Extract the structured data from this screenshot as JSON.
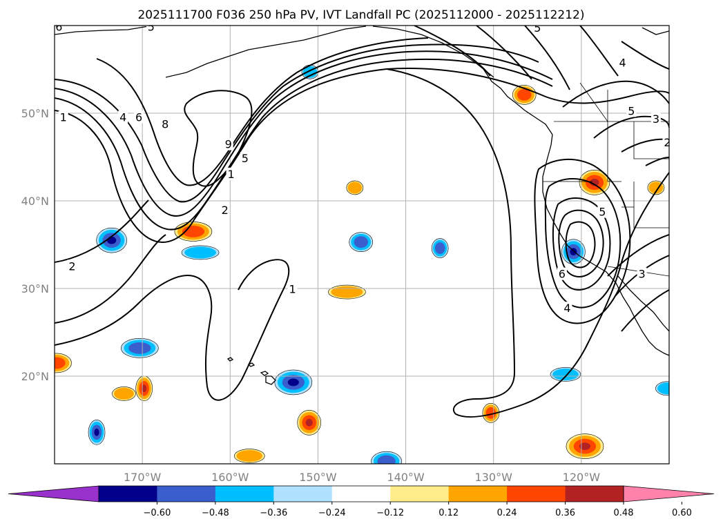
{
  "chart_data": {
    "type": "contour-map",
    "title": "2025111700 F036 250 hPa PV, IVT Landfall PC (2025112000 - 2025112212)",
    "map": {
      "lon_range": [
        -180,
        -110
      ],
      "lat_range": [
        10,
        60
      ],
      "gridlines": true,
      "x_ticks": [
        {
          "lon": -170,
          "label": "170°W"
        },
        {
          "lon": -160,
          "label": "160°W"
        },
        {
          "lon": -150,
          "label": "150°W"
        },
        {
          "lon": -140,
          "label": "140°W"
        },
        {
          "lon": -130,
          "label": "130°W"
        },
        {
          "lon": -120,
          "label": "120°W"
        }
      ],
      "y_ticks": [
        {
          "lat": 50,
          "label": "50°N"
        },
        {
          "lat": 40,
          "label": "40°N"
        },
        {
          "lat": 30,
          "label": "30°N"
        },
        {
          "lat": 20,
          "label": "20°N"
        }
      ]
    },
    "pv_contours": {
      "variable": "250 hPa PV",
      "color": "#000000",
      "labels": [
        {
          "text": "1",
          "lon": -179,
          "lat": 49.5
        },
        {
          "text": "4",
          "lon": -172.2,
          "lat": 49.5
        },
        {
          "text": "6",
          "lon": -170.4,
          "lat": 49.5
        },
        {
          "text": "8",
          "lon": -167.4,
          "lat": 48.7
        },
        {
          "text": "9",
          "lon": -160.2,
          "lat": 46.4
        },
        {
          "text": "5",
          "lon": -158.3,
          "lat": 44.8
        },
        {
          "text": "1",
          "lon": -159.9,
          "lat": 43
        },
        {
          "text": "2",
          "lon": -160.6,
          "lat": 38.9
        },
        {
          "text": "2",
          "lon": -178,
          "lat": 32.5
        },
        {
          "text": "1",
          "lon": -152.9,
          "lat": 29.9
        },
        {
          "text": "5",
          "lon": -125,
          "lat": 59.7
        },
        {
          "text": "4",
          "lon": -115.3,
          "lat": 55.7
        },
        {
          "text": "5",
          "lon": -114.3,
          "lat": 50.2
        },
        {
          "text": "3",
          "lon": -111.5,
          "lat": 49.3
        },
        {
          "text": "2",
          "lon": -110.2,
          "lat": 46.6
        },
        {
          "text": "5",
          "lon": -117.6,
          "lat": 38.7
        },
        {
          "text": "6",
          "lon": -122.2,
          "lat": 31.6
        },
        {
          "text": "3",
          "lon": -113.1,
          "lat": 31.6
        },
        {
          "text": "4",
          "lon": -121.6,
          "lat": 27.7
        },
        {
          "text": "5",
          "lon": -169,
          "lat": 59.8
        },
        {
          "text": "6",
          "lon": -179.5,
          "lat": 59.8
        }
      ]
    },
    "ivt_shading": {
      "variable": "IVT Landfall PC",
      "positive_blobs": [
        {
          "lon": -145.8,
          "lat": 41.5
        },
        {
          "lon": -126.5,
          "lat": 52.1
        },
        {
          "lon": -118.5,
          "lat": 42.1
        },
        {
          "lon": -146.7,
          "lat": 29.6
        },
        {
          "lon": -130.3,
          "lat": 15.8
        },
        {
          "lon": -151,
          "lat": 14.7
        },
        {
          "lon": -157.8,
          "lat": 10.9
        },
        {
          "lon": -164.2,
          "lat": 36.5
        },
        {
          "lon": -169.8,
          "lat": 18.6
        },
        {
          "lon": -172.1,
          "lat": 18
        },
        {
          "lon": -179.8,
          "lat": 21.5
        },
        {
          "lon": -119.6,
          "lat": 12
        },
        {
          "lon": -111.5,
          "lat": 41.5
        }
      ],
      "negative_blobs": [
        {
          "lon": -150.9,
          "lat": 54.7
        },
        {
          "lon": -145.1,
          "lat": 35.3
        },
        {
          "lon": -173.5,
          "lat": 35.5
        },
        {
          "lon": -163.4,
          "lat": 34.1
        },
        {
          "lon": -136.1,
          "lat": 34.6
        },
        {
          "lon": -120.9,
          "lat": 34.2
        },
        {
          "lon": -121.8,
          "lat": 20.2
        },
        {
          "lon": -170.3,
          "lat": 23.2
        },
        {
          "lon": -175.2,
          "lat": 13.6
        },
        {
          "lon": -110.2,
          "lat": 18.6
        },
        {
          "lon": -142.2,
          "lat": 10.3
        },
        {
          "lon": -152.8,
          "lat": 19.3
        }
      ]
    },
    "colorbar": {
      "orientation": "horizontal",
      "extend": "both",
      "levels": [
        -0.6,
        -0.48,
        -0.36,
        -0.24,
        -0.12,
        0.12,
        0.24,
        0.36,
        0.48,
        0.6
      ],
      "tick_labels": [
        "−0.60",
        "−0.48",
        "−0.36",
        "−0.24",
        "−0.12",
        "0.12",
        "0.24",
        "0.36",
        "0.48",
        "0.60"
      ],
      "colors": [
        "#9932cc",
        "#00008b",
        "#3a5fcd",
        "#00bfff",
        "#b0e2ff",
        "#ffffff",
        "#ffec8b",
        "#ffa500",
        "#ff4500",
        "#b22222",
        "#ff82ab"
      ]
    }
  }
}
